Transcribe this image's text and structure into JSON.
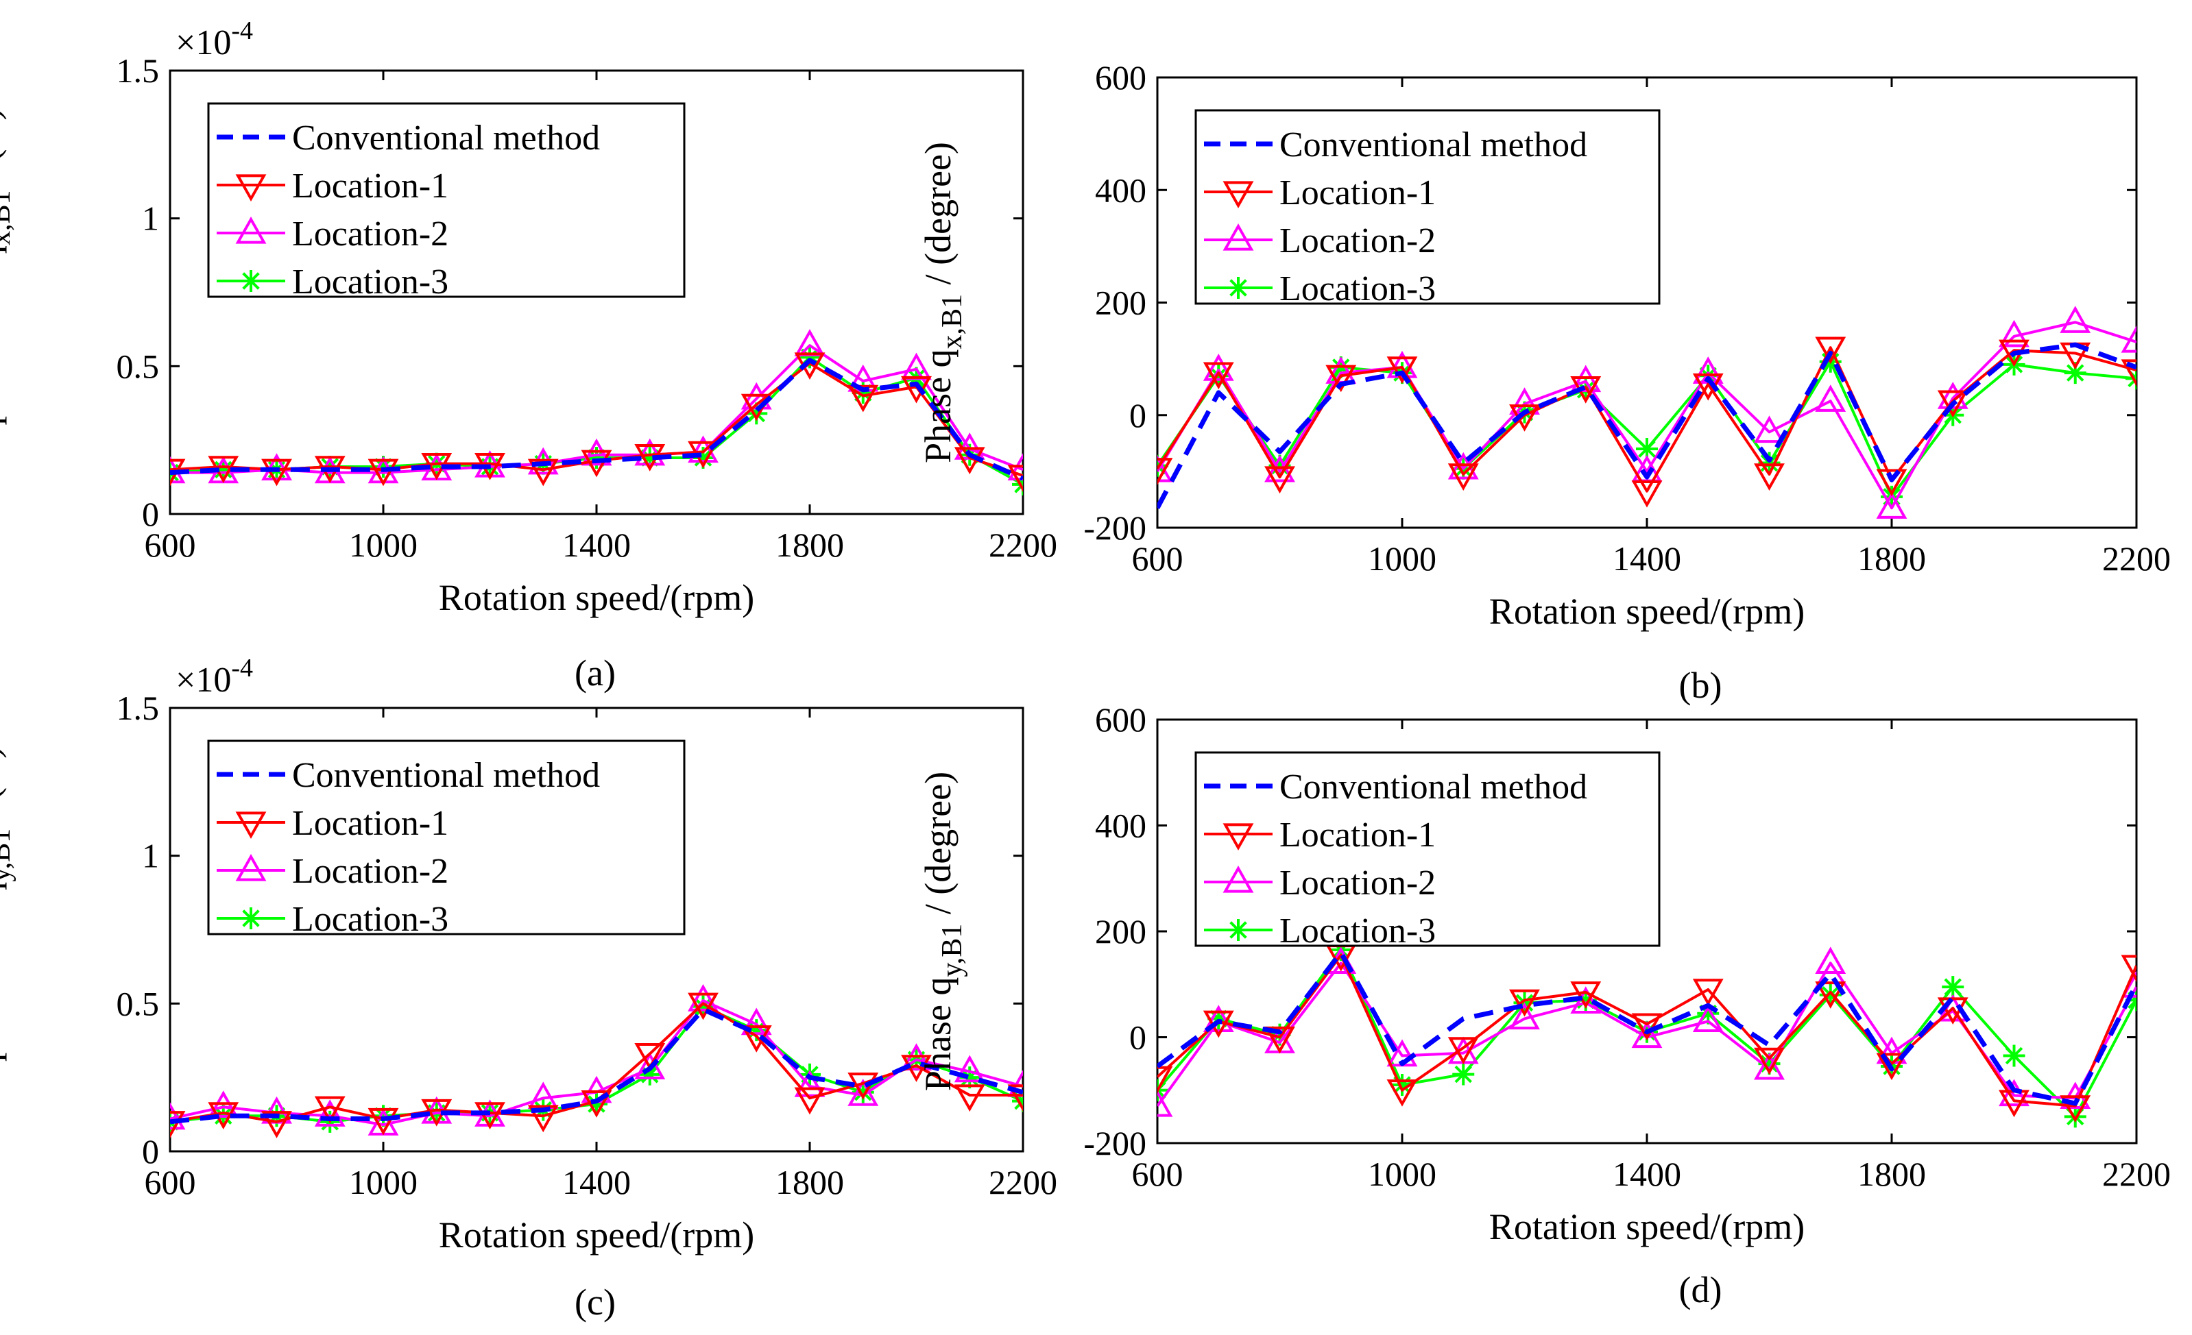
{
  "figure": {
    "legend_entries": [
      "Conventional method",
      "Location-1",
      "Location-2",
      "Location-3"
    ],
    "series_colors": {
      "Conventional method": "#0000ff",
      "Location-1": "#ff0000",
      "Location-2": "#ff00ff",
      "Location-3": "#00ff00"
    }
  },
  "chart_data": [
    {
      "id": "a",
      "type": "line",
      "caption": "(a)",
      "xlabel": "Rotation speed/(rpm)",
      "ylabel_prefix": "Displacement",
      "ylabel_q": "q",
      "ylabel_sub": "x,B1",
      "ylabel_unit": "/ (m)",
      "exponent_base": "×10",
      "exponent_power": "-4",
      "x": [
        600,
        700,
        800,
        900,
        1000,
        1100,
        1200,
        1300,
        1400,
        1500,
        1600,
        1700,
        1800,
        1900,
        2000,
        2100,
        2200
      ],
      "xlim": [
        600,
        2200
      ],
      "xticks": [
        600,
        1000,
        1400,
        1800,
        2200
      ],
      "ylim": [
        0,
        1.5
      ],
      "yticks": [
        0,
        0.5,
        1,
        1.5
      ],
      "ytick_labels": [
        "0",
        "0.5",
        "1",
        "1.5"
      ],
      "legend_position": "top-left",
      "series": [
        {
          "name": "Conventional method",
          "values": [
            0.14,
            0.15,
            0.15,
            0.15,
            0.15,
            0.16,
            0.16,
            0.17,
            0.18,
            0.19,
            0.2,
            0.35,
            0.52,
            0.42,
            0.44,
            0.2,
            0.12
          ]
        },
        {
          "name": "Location-1",
          "values": [
            0.15,
            0.16,
            0.15,
            0.16,
            0.15,
            0.17,
            0.17,
            0.15,
            0.18,
            0.2,
            0.21,
            0.37,
            0.51,
            0.4,
            0.43,
            0.19,
            0.13
          ]
        },
        {
          "name": "Location-2",
          "values": [
            0.14,
            0.14,
            0.15,
            0.14,
            0.14,
            0.15,
            0.16,
            0.17,
            0.2,
            0.2,
            0.21,
            0.39,
            0.57,
            0.45,
            0.49,
            0.22,
            0.15
          ]
        },
        {
          "name": "Location-3",
          "values": [
            0.14,
            0.15,
            0.15,
            0.16,
            0.16,
            0.17,
            0.16,
            0.17,
            0.19,
            0.19,
            0.19,
            0.34,
            0.53,
            0.41,
            0.46,
            0.2,
            0.1
          ]
        }
      ]
    },
    {
      "id": "b",
      "type": "line",
      "caption": "(b)",
      "xlabel": "Rotation speed/(rpm)",
      "ylabel_prefix": "Phase",
      "ylabel_q": "q",
      "ylabel_sub": "x,B1",
      "ylabel_unit": "/ (degree)",
      "x": [
        600,
        700,
        800,
        900,
        1000,
        1100,
        1200,
        1300,
        1400,
        1500,
        1600,
        1700,
        1800,
        1900,
        2000,
        2100,
        2200
      ],
      "xlim": [
        600,
        2200
      ],
      "xticks": [
        600,
        1000,
        1400,
        1800,
        2200
      ],
      "ylim": [
        -200,
        600
      ],
      "yticks": [
        -200,
        0,
        200,
        400,
        600
      ],
      "ytick_labels": [
        "-200",
        "0",
        "200",
        "400",
        "600"
      ],
      "legend_position": "top-left",
      "series": [
        {
          "name": "Conventional method",
          "values": [
            -165,
            40,
            -65,
            55,
            75,
            -85,
            5,
            50,
            -110,
            65,
            -80,
            110,
            -115,
            20,
            110,
            125,
            85
          ]
        },
        {
          "name": "Location-1",
          "values": [
            -95,
            75,
            -110,
            70,
            85,
            -105,
            0,
            50,
            -135,
            55,
            -105,
            120,
            -115,
            25,
            115,
            110,
            80
          ]
        },
        {
          "name": "Location-2",
          "values": [
            -100,
            80,
            -100,
            75,
            85,
            -95,
            20,
            60,
            -100,
            75,
            -30,
            25,
            -165,
            30,
            140,
            165,
            130
          ]
        },
        {
          "name": "Location-3",
          "values": [
            -90,
            70,
            -90,
            85,
            75,
            -95,
            5,
            45,
            -60,
            70,
            -85,
            95,
            -145,
            0,
            90,
            75,
            65
          ]
        }
      ]
    },
    {
      "id": "c",
      "type": "line",
      "caption": "(c)",
      "xlabel": "Rotation speed/(rpm)",
      "ylabel_prefix": "Displacement",
      "ylabel_q": "q",
      "ylabel_sub": "y,B1",
      "ylabel_unit": "/ (m)",
      "exponent_base": "×10",
      "exponent_power": "-4",
      "x": [
        600,
        700,
        800,
        900,
        1000,
        1100,
        1200,
        1300,
        1400,
        1500,
        1600,
        1700,
        1800,
        1900,
        2000,
        2100,
        2200
      ],
      "xlim": [
        600,
        2200
      ],
      "xticks": [
        600,
        1000,
        1400,
        1800,
        2200
      ],
      "ylim": [
        0,
        1.5
      ],
      "yticks": [
        0,
        0.5,
        1,
        1.5
      ],
      "ytick_labels": [
        "0",
        "0.5",
        "1",
        "1.5"
      ],
      "legend_position": "top-left",
      "series": [
        {
          "name": "Conventional method",
          "values": [
            0.1,
            0.12,
            0.12,
            0.11,
            0.11,
            0.13,
            0.13,
            0.14,
            0.17,
            0.28,
            0.48,
            0.4,
            0.25,
            0.22,
            0.3,
            0.25,
            0.2
          ]
        },
        {
          "name": "Location-1",
          "values": [
            0.1,
            0.13,
            0.1,
            0.15,
            0.11,
            0.14,
            0.13,
            0.12,
            0.17,
            0.33,
            0.5,
            0.39,
            0.18,
            0.23,
            0.29,
            0.19,
            0.19
          ]
        },
        {
          "name": "Location-2",
          "values": [
            0.11,
            0.15,
            0.13,
            0.12,
            0.09,
            0.13,
            0.12,
            0.18,
            0.2,
            0.28,
            0.51,
            0.43,
            0.22,
            0.19,
            0.31,
            0.27,
            0.22
          ]
        },
        {
          "name": "Location-3",
          "values": [
            0.1,
            0.12,
            0.12,
            0.1,
            0.12,
            0.13,
            0.13,
            0.14,
            0.16,
            0.26,
            0.49,
            0.41,
            0.26,
            0.2,
            0.31,
            0.25,
            0.17
          ]
        }
      ]
    },
    {
      "id": "d",
      "type": "line",
      "caption": "(d)",
      "xlabel": "Rotation speed/(rpm)",
      "ylabel_prefix": "Phase",
      "ylabel_q": "q",
      "ylabel_sub": "y,B1",
      "ylabel_unit": "/ (degree)",
      "x": [
        600,
        700,
        800,
        900,
        1000,
        1100,
        1200,
        1300,
        1400,
        1500,
        1600,
        1700,
        1800,
        1900,
        2000,
        2100,
        2200
      ],
      "xlim": [
        600,
        2200
      ],
      "xticks": [
        600,
        1000,
        1400,
        1800,
        2200
      ],
      "ylim": [
        -200,
        600
      ],
      "yticks": [
        -200,
        0,
        200,
        400,
        600
      ],
      "ytick_labels": [
        "-200",
        "0",
        "200",
        "400",
        "600"
      ],
      "legend_position": "top-left",
      "series": [
        {
          "name": "Conventional method",
          "values": [
            -55,
            30,
            10,
            160,
            -50,
            35,
            60,
            75,
            10,
            60,
            -15,
            120,
            -60,
            75,
            -100,
            -125,
            100
          ]
        },
        {
          "name": "Location-1",
          "values": [
            -75,
            30,
            0,
            155,
            -100,
            -20,
            70,
            85,
            25,
            90,
            -40,
            85,
            -50,
            55,
            -120,
            -130,
            135
          ]
        },
        {
          "name": "Location-2",
          "values": [
            -130,
            30,
            -10,
            140,
            -35,
            -30,
            35,
            65,
            0,
            30,
            -60,
            140,
            -30,
            50,
            -110,
            -115,
            95
          ]
        },
        {
          "name": "Location-3",
          "values": [
            -100,
            35,
            5,
            165,
            -90,
            -70,
            65,
            70,
            10,
            45,
            -50,
            80,
            -55,
            95,
            -35,
            -150,
            70
          ]
        }
      ]
    }
  ]
}
